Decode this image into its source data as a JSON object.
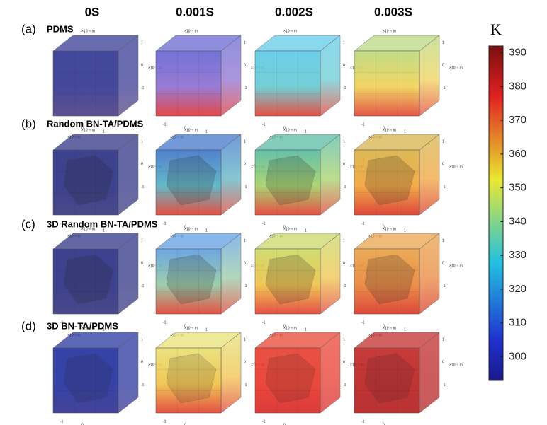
{
  "column_headers": [
    "0S",
    "0.001S",
    "0.002S",
    "0.003S"
  ],
  "rows": [
    {
      "letter": "(a)",
      "label": "PDMS"
    },
    {
      "letter": "(b)",
      "label": "Random BN-TA/PDMS"
    },
    {
      "letter": "(c)",
      "label": "3D Random BN-TA/PDMS"
    },
    {
      "letter": "(d)",
      "label": "3D BN-TA/PDMS"
    }
  ],
  "cube_axis": {
    "ticks": [
      "1",
      "0",
      "-1"
    ],
    "unit": "×10⁻⁶ m"
  },
  "colorbar": {
    "unit": "K",
    "range": [
      293,
      392
    ],
    "ticks": [
      300,
      310,
      320,
      330,
      340,
      350,
      360,
      370,
      380,
      390
    ]
  }
}
